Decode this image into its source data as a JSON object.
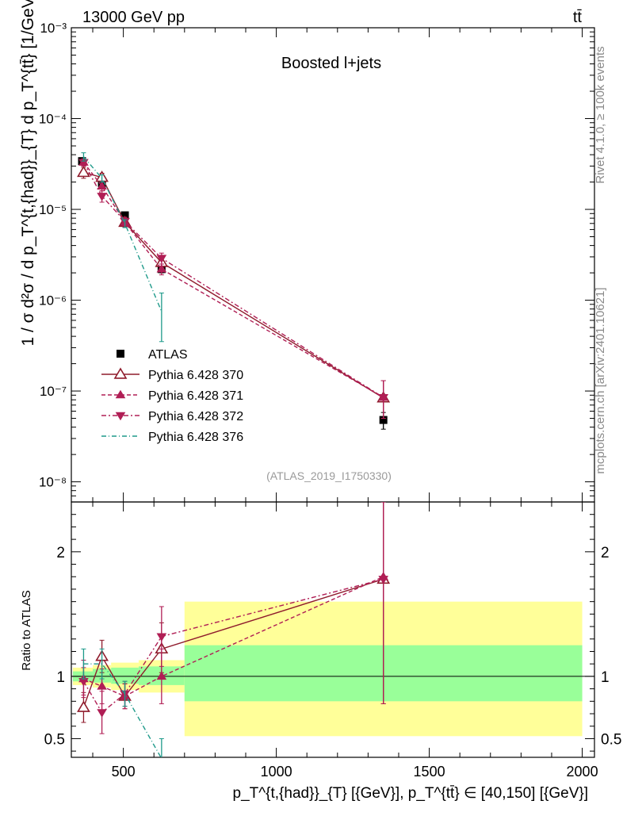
{
  "header": {
    "energy_label": "13000 GeV pp",
    "process_label": "tt̄"
  },
  "side_text": {
    "rivet": "Rivet 4.1.0, ≥ 100k events",
    "mcplots": "mcplots.cern.ch [arXiv:2401.10621]"
  },
  "chart_data": {
    "type": "scatter",
    "title": "Boosted l+jets",
    "analysis_tag": "(ATLAS_2019_I1750330)",
    "main": {
      "ylabel": "1 / σ d²σ / d p_T^{t,{had}}_{T} d p_T^{tt̄} [1/GeV²]",
      "yscale": "log",
      "ylim": [
        6e-09,
        0.001
      ],
      "yticks": [
        {
          "value": 1e-08,
          "label": "10⁻⁸"
        },
        {
          "value": 1e-07,
          "label": "10⁻⁷"
        },
        {
          "value": 1e-06,
          "label": "10⁻⁶"
        },
        {
          "value": 1e-05,
          "label": "10⁻⁵"
        },
        {
          "value": 0.0001,
          "label": "10⁻⁴"
        },
        {
          "value": 0.001,
          "label": "10⁻³"
        }
      ]
    },
    "ratio": {
      "ylabel": "Ratio to ATLAS",
      "ylim": [
        0.35,
        2.4
      ],
      "yticks": [
        {
          "value": 0.5,
          "label": "0.5"
        },
        {
          "value": 1,
          "label": "1"
        },
        {
          "value": 2,
          "label": "2"
        }
      ],
      "bands": [
        {
          "xlow": 335,
          "xhigh": 400,
          "green": [
            0.96,
            1.04
          ],
          "yellow": [
            0.93,
            1.07
          ]
        },
        {
          "xlow": 400,
          "xhigh": 460,
          "green": [
            0.95,
            1.06
          ],
          "yellow": [
            0.91,
            1.09
          ]
        },
        {
          "xlow": 460,
          "xhigh": 550,
          "green": [
            0.94,
            1.07
          ],
          "yellow": [
            0.89,
            1.11
          ]
        },
        {
          "xlow": 550,
          "xhigh": 700,
          "green": [
            0.93,
            1.08
          ],
          "yellow": [
            0.87,
            1.13
          ]
        },
        {
          "xlow": 700,
          "xhigh": 2000,
          "green": [
            0.8,
            1.25
          ],
          "yellow": [
            0.52,
            1.6
          ]
        }
      ]
    },
    "xlabel": "p_T^{t,{had}}_{T} [{GeV}], p_T^{tt̄} ∈ [40,150] [{GeV}]",
    "xlim": [
      330,
      2040
    ],
    "xticks": [
      {
        "value": 500,
        "label": "500"
      },
      {
        "value": 1000,
        "label": "1000"
      },
      {
        "value": 1500,
        "label": "1500"
      },
      {
        "value": 2000,
        "label": "2000"
      }
    ],
    "series": [
      {
        "name": "ATLAS",
        "color": "#000000",
        "marker": "square",
        "dash": "",
        "x": [
          365,
          430,
          505,
          625,
          1350
        ],
        "y": [
          3.4e-05,
          1.95e-05,
          8.6e-06,
          2.2e-06,
          4.8e-08
        ],
        "yerr": [
          [
            3.1e-05,
            3.7e-05
          ],
          [
            1.8e-05,
            2.1e-05
          ],
          [
            8e-06,
            9.2e-06
          ],
          [
            2e-06,
            2.4e-06
          ],
          [
            3.8e-08,
            5.8e-08
          ]
        ],
        "ratio": [
          1,
          1,
          1,
          1,
          1
        ],
        "ratio_err": null
      },
      {
        "name": "Pythia 6.428 370",
        "color": "#8f1b2c",
        "marker": "triangle-up-open",
        "dash": "",
        "x": [
          370,
          430,
          505,
          625,
          1350
        ],
        "y": [
          2.55e-05,
          2.25e-05,
          7.2e-06,
          2.6e-06,
          8.4e-08
        ],
        "yerr": [
          [
            2.2e-05,
            2.9e-05
          ],
          [
            2e-05,
            2.5e-05
          ],
          [
            6.4e-06,
            8.1e-06
          ],
          [
            2.2e-06,
            3e-06
          ],
          [
            5e-08,
            1.3e-07
          ]
        ],
        "ratio": [
          0.75,
          1.16,
          0.84,
          1.22,
          1.78
        ],
        "ratio_err": [
          [
            0.63,
            0.87
          ],
          [
            1.03,
            1.29
          ],
          [
            0.74,
            0.94
          ],
          [
            1.03,
            1.43
          ],
          [
            0.78,
            2.4
          ]
        ]
      },
      {
        "name": "Pythia 6.428 371",
        "color": "#b01e55",
        "marker": "triangle-up",
        "dash": "5,3",
        "x": [
          370,
          430,
          505,
          625,
          1350
        ],
        "y": [
          3.3e-05,
          1.8e-05,
          7.2e-06,
          2.2e-06,
          8.5e-08
        ],
        "yerr": [
          [
            3e-05,
            3.6e-05
          ],
          [
            1.6e-05,
            2e-05
          ],
          [
            6.4e-06,
            8e-06
          ],
          [
            1.9e-06,
            2.5e-06
          ],
          [
            5e-08,
            1.3e-07
          ]
        ],
        "ratio": [
          0.98,
          0.92,
          0.84,
          1.0,
          1.8
        ],
        "ratio_err": [
          [
            0.83,
            1.13
          ],
          [
            0.78,
            1.06
          ],
          [
            0.74,
            0.94
          ],
          [
            0.78,
            1.22
          ],
          [
            0.78,
            2.4
          ]
        ]
      },
      {
        "name": "Pythia 6.428 372",
        "color": "#b01e55",
        "marker": "triangle-down",
        "dash": "6,3,2,3",
        "x": [
          370,
          430,
          505,
          625,
          1350
        ],
        "y": [
          3.3e-05,
          1.4e-05,
          7.4e-06,
          2.9e-06,
          8.5e-08
        ],
        "yerr": [
          [
            3e-05,
            3.6e-05
          ],
          [
            1.2e-05,
            1.6e-05
          ],
          [
            6.6e-06,
            8.2e-06
          ],
          [
            2.5e-06,
            3.3e-06
          ],
          [
            5e-08,
            1.3e-07
          ]
        ],
        "ratio": [
          0.96,
          0.71,
          0.86,
          1.32,
          1.78
        ],
        "ratio_err": [
          [
            0.85,
            1.07
          ],
          [
            0.54,
            0.88
          ],
          [
            0.76,
            0.96
          ],
          [
            1.08,
            1.56
          ],
          [
            0.78,
            2.4
          ]
        ]
      },
      {
        "name": "Pythia 6.428 376",
        "color": "#1e9a8a",
        "marker": "none",
        "dash": "6,3,1,3",
        "x": [
          370,
          430,
          505,
          625
        ],
        "y": [
          3.8e-05,
          2.2e-05,
          7e-06,
          7.5e-07
        ],
        "yerr": [
          [
            3.4e-05,
            4.2e-05
          ],
          [
            2e-05,
            2.4e-05
          ],
          [
            6.3e-06,
            7.7e-06
          ],
          [
            3.5e-07,
            1.2e-06
          ]
        ],
        "ratio": [
          1.1,
          1.1,
          0.86,
          0.34
        ],
        "ratio_err": [
          [
            0.98,
            1.22
          ],
          [
            0.98,
            1.22
          ],
          [
            0.76,
            0.96
          ],
          [
            0.2,
            0.5
          ]
        ]
      }
    ]
  }
}
